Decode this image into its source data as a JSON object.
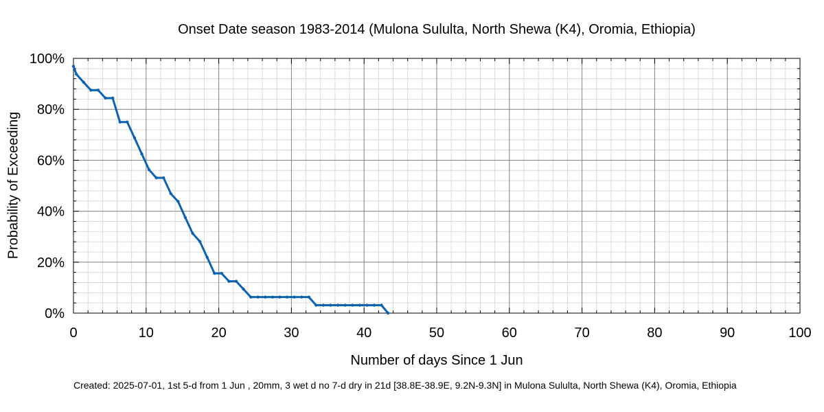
{
  "chart_data": {
    "type": "line",
    "title": "Onset Date season 1983-2014 (Mulona Sululta, North Shewa (K4), Oromia, Ethiopia)",
    "xlabel": "Number of days Since 1 Jun",
    "ylabel": "Probability of Exceeding",
    "xlim": [
      0,
      100
    ],
    "ylim": [
      0,
      100
    ],
    "x_ticks": [
      "0",
      "10",
      "20",
      "30",
      "40",
      "50",
      "60",
      "70",
      "80",
      "90",
      "100"
    ],
    "y_ticks": [
      "0%",
      "20%",
      "40%",
      "60%",
      "80%",
      "100%"
    ],
    "grid": true,
    "line_color": "#0b63b0",
    "series": [
      {
        "x": [
          0,
          0.4,
          1.4,
          2.4,
          3.4,
          4.4,
          5.4,
          6.4,
          7.4,
          8.4,
          9.4,
          10.4,
          11.4,
          12.4,
          13.4,
          14.4,
          15.4,
          16.4,
          17.4,
          18.4,
          19.4,
          20.4,
          21.4,
          22.4,
          23.4,
          24.4,
          25.4,
          26.4,
          27.4,
          28.4,
          29.4,
          30.4,
          31.4,
          32.4,
          33.4,
          34.4,
          35.4,
          36.4,
          37.4,
          38.4,
          39.4,
          40.4,
          41.4,
          42.4,
          43.3
        ],
        "y": [
          96.9,
          93.8,
          90.6,
          87.5,
          87.5,
          84.4,
          84.4,
          75,
          75,
          68.8,
          62.5,
          56.3,
          53.1,
          53.1,
          46.9,
          43.8,
          37.5,
          31.3,
          28.1,
          21.9,
          15.6,
          15.6,
          12.5,
          12.5,
          9.4,
          6.3,
          6.3,
          6.3,
          6.3,
          6.3,
          6.3,
          6.3,
          6.3,
          6.3,
          3.1,
          3.1,
          3.1,
          3.1,
          3.1,
          3.1,
          3.1,
          3.1,
          3.1,
          3.1,
          0
        ]
      }
    ]
  },
  "footer": "Created: 2025-07-01, 1st 5-d from 1 Jun , 20mm, 3 wet d no 7-d dry in 21d [38.8E-38.9E, 9.2N-9.3N] in Mulona Sululta, North Shewa (K4), Oromia, Ethiopia"
}
